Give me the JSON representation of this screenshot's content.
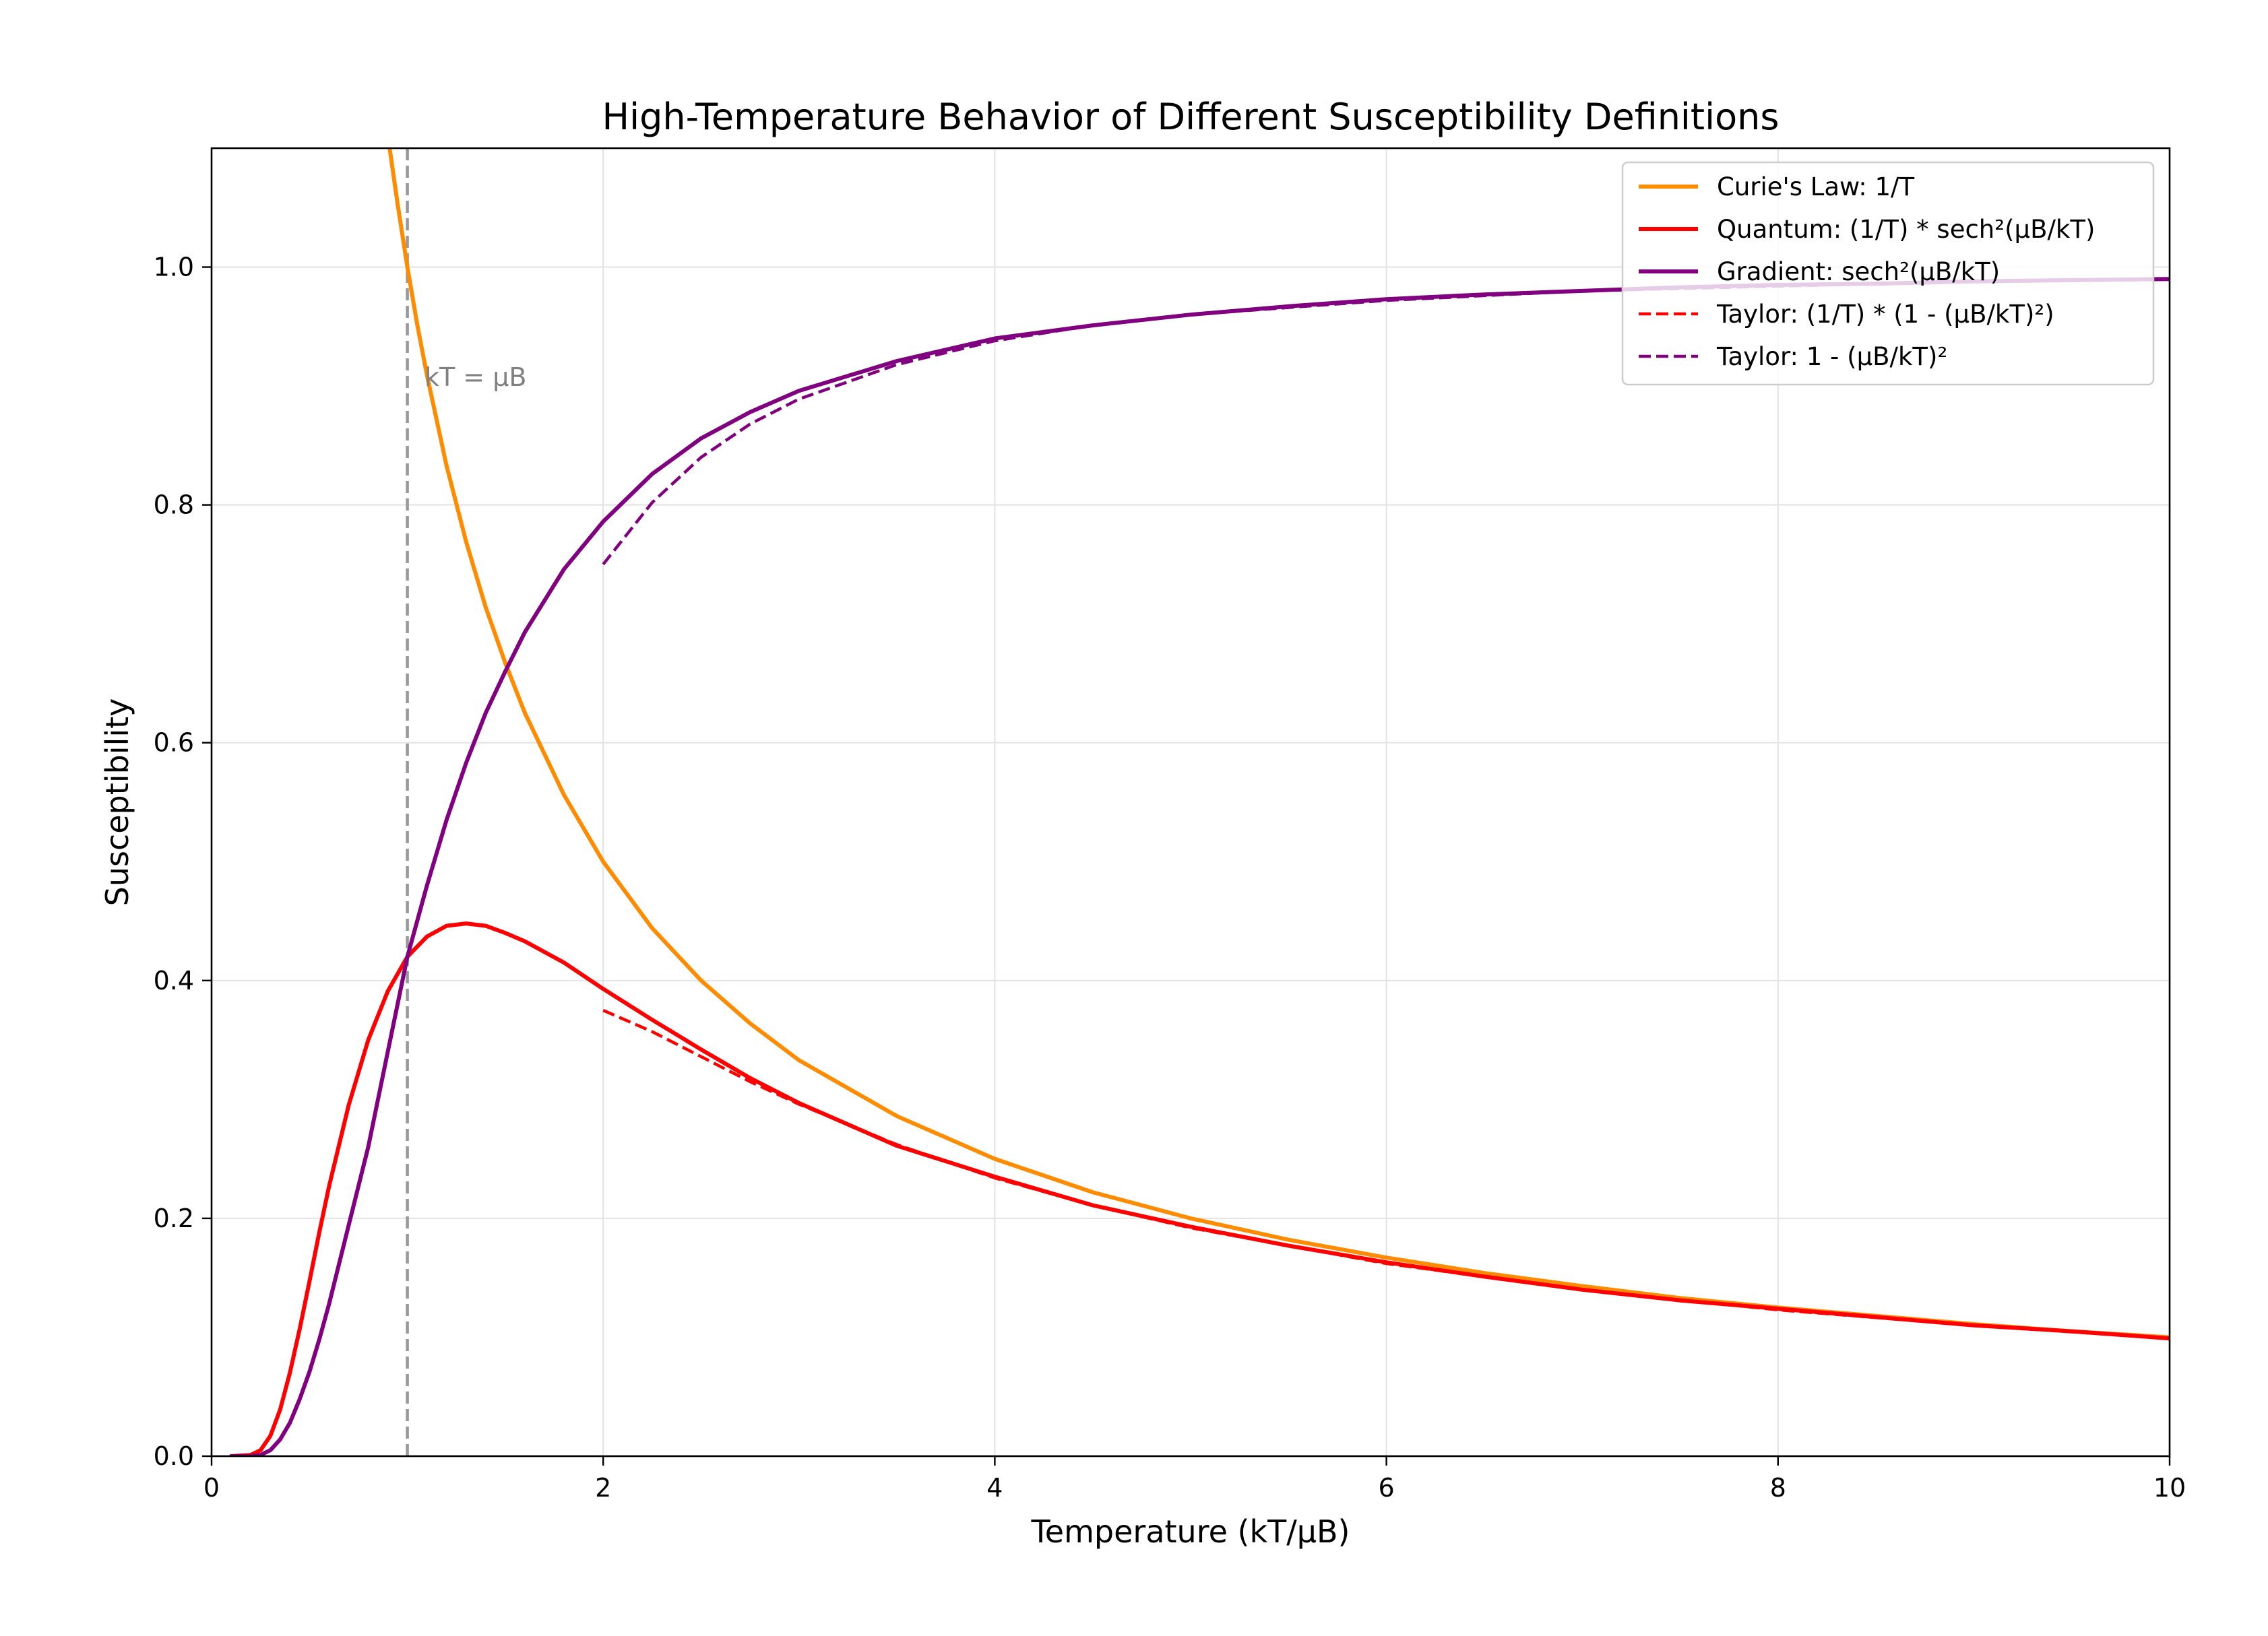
{
  "chart_data": {
    "type": "line",
    "title": "High-Temperature Behavior of Different Susceptibility Definitions",
    "xlabel": "Temperature (kT/μB)",
    "ylabel": "Susceptibility",
    "xlim": [
      0,
      10
    ],
    "ylim": [
      0,
      1.1
    ],
    "xticks": [
      0,
      2,
      4,
      6,
      8,
      10
    ],
    "xtick_labels": [
      "0",
      "2",
      "4",
      "6",
      "8",
      "10"
    ],
    "yticks": [
      0.0,
      0.2,
      0.4,
      0.6,
      0.8,
      1.0
    ],
    "ytick_labels": [
      "0.0",
      "0.2",
      "0.4",
      "0.6",
      "0.8",
      "1.0"
    ],
    "grid": true,
    "legend_position": "top-right",
    "annotation": {
      "text": "kT = μB",
      "x": 1.1,
      "y": 0.905
    },
    "reference_line": {
      "orientation": "vertical",
      "x": 1.0,
      "color": "#999999",
      "style": "dashed"
    },
    "series": [
      {
        "name": "Curie's Law: 1/T",
        "color": "#ff8c00",
        "style": "solid",
        "x": [
          0.85,
          0.9,
          0.95,
          1.0,
          1.05,
          1.1,
          1.2,
          1.3,
          1.4,
          1.5,
          1.6,
          1.8,
          2.0,
          2.25,
          2.5,
          2.75,
          3.0,
          3.5,
          4.0,
          4.5,
          5.0,
          5.5,
          6.0,
          6.5,
          7.0,
          7.5,
          8.0,
          8.5,
          9.0,
          9.5,
          10.0
        ],
        "y": [
          1.176,
          1.111,
          1.053,
          1.0,
          0.952,
          0.909,
          0.833,
          0.769,
          0.714,
          0.667,
          0.625,
          0.556,
          0.5,
          0.444,
          0.4,
          0.364,
          0.333,
          0.286,
          0.25,
          0.222,
          0.2,
          0.182,
          0.167,
          0.154,
          0.143,
          0.133,
          0.125,
          0.118,
          0.111,
          0.105,
          0.1
        ]
      },
      {
        "name": "Quantum: (1/T) * sech²(μB/kT)",
        "color": "#ff0000",
        "style": "solid",
        "x": [
          0.1,
          0.2,
          0.25,
          0.3,
          0.35,
          0.4,
          0.45,
          0.5,
          0.55,
          0.6,
          0.7,
          0.8,
          0.9,
          1.0,
          1.1,
          1.2,
          1.3,
          1.4,
          1.5,
          1.6,
          1.8,
          2.0,
          2.25,
          2.5,
          2.75,
          3.0,
          3.5,
          4.0,
          4.5,
          5.0,
          5.5,
          6.0,
          6.5,
          7.0,
          7.5,
          8.0,
          8.5,
          9.0,
          9.5,
          10.0
        ],
        "y": [
          0.0,
          0.001,
          0.005,
          0.017,
          0.039,
          0.07,
          0.107,
          0.147,
          0.188,
          0.227,
          0.295,
          0.35,
          0.391,
          0.42,
          0.437,
          0.446,
          0.448,
          0.446,
          0.44,
          0.433,
          0.415,
          0.393,
          0.367,
          0.342,
          0.318,
          0.297,
          0.261,
          0.235,
          0.211,
          0.193,
          0.177,
          0.163,
          0.151,
          0.14,
          0.131,
          0.124,
          0.117,
          0.11,
          0.105,
          0.099
        ]
      },
      {
        "name": "Gradient: sech²(μB/kT)",
        "color": "#800080",
        "style": "solid",
        "x": [
          0.1,
          0.2,
          0.25,
          0.3,
          0.35,
          0.4,
          0.45,
          0.5,
          0.55,
          0.6,
          0.7,
          0.8,
          0.9,
          1.0,
          1.1,
          1.2,
          1.3,
          1.4,
          1.5,
          1.6,
          1.8,
          2.0,
          2.25,
          2.5,
          2.75,
          3.0,
          3.5,
          4.0,
          4.5,
          5.0,
          5.5,
          6.0,
          6.5,
          7.0,
          7.5,
          8.0,
          8.5,
          9.0,
          9.5,
          10.0
        ],
        "y": [
          0.0,
          0.0,
          0.001,
          0.005,
          0.014,
          0.028,
          0.048,
          0.071,
          0.098,
          0.128,
          0.194,
          0.26,
          0.34,
          0.42,
          0.48,
          0.535,
          0.583,
          0.625,
          0.66,
          0.693,
          0.746,
          0.786,
          0.826,
          0.856,
          0.878,
          0.896,
          0.921,
          0.94,
          0.951,
          0.96,
          0.967,
          0.973,
          0.977,
          0.98,
          0.983,
          0.985,
          0.986,
          0.988,
          0.989,
          0.99
        ]
      },
      {
        "name": "Taylor: (1/T) * (1 - (μB/kT)²)",
        "color": "#ff0000",
        "style": "dashed",
        "x": [
          2.0,
          2.25,
          2.5,
          2.75,
          3.0,
          3.5,
          4.0,
          4.5,
          5.0,
          6.0,
          7.0,
          8.0,
          9.0,
          10.0
        ],
        "y": [
          0.375,
          0.357,
          0.336,
          0.315,
          0.296,
          0.262,
          0.234,
          0.211,
          0.192,
          0.162,
          0.14,
          0.123,
          0.11,
          0.099
        ]
      },
      {
        "name": "Taylor: 1 - (μB/kT)²",
        "color": "#800080",
        "style": "dashed",
        "x": [
          2.0,
          2.25,
          2.5,
          2.75,
          3.0,
          3.5,
          4.0,
          4.5,
          5.0,
          6.0,
          7.0,
          8.0,
          9.0,
          10.0
        ],
        "y": [
          0.75,
          0.802,
          0.84,
          0.868,
          0.889,
          0.918,
          0.938,
          0.951,
          0.96,
          0.972,
          0.98,
          0.984,
          0.988,
          0.99
        ]
      }
    ]
  }
}
